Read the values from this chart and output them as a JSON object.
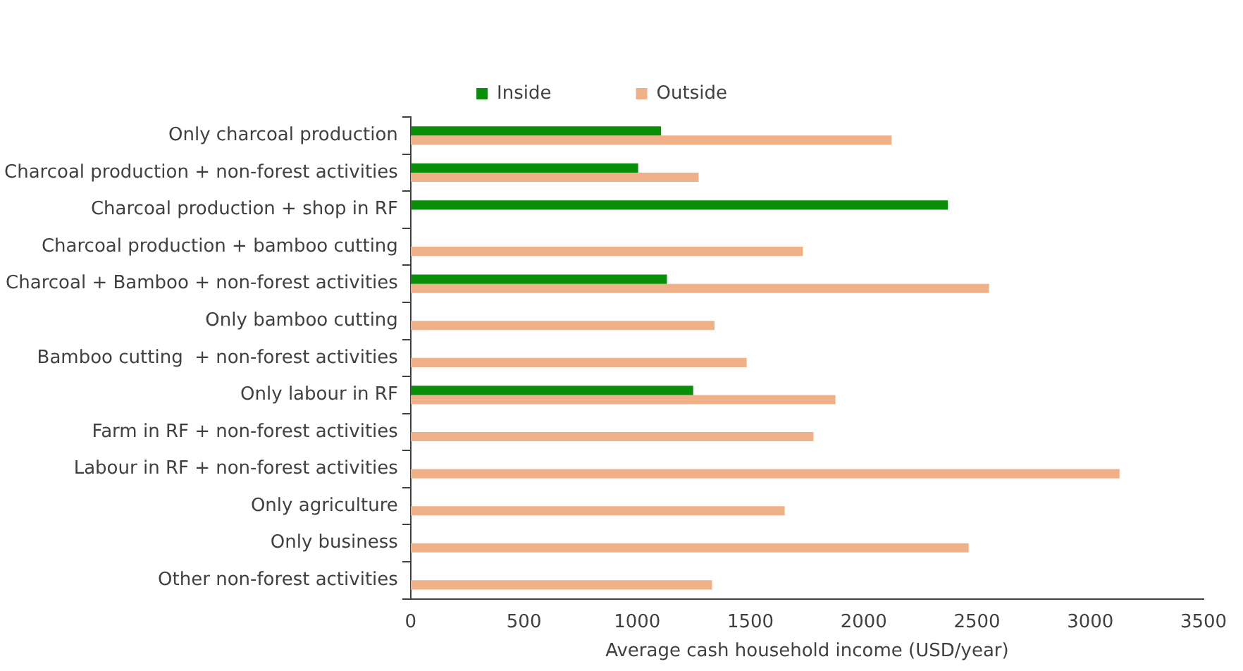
{
  "chart_data": {
    "type": "bar",
    "orientation": "horizontal",
    "xlabel": "Average cash household income (USD/year)",
    "categories": [
      "Only charcoal production",
      "Charcoal production + non-forest activities",
      "Charcoal production + shop in RF",
      "Charcoal production + bamboo cutting",
      "Charcoal + Bamboo + non-forest activities",
      "Only bamboo cutting",
      "Bamboo cutting  + non-forest activities",
      "Only labour in RF",
      "Farm in RF + non-forest activities",
      "Labour in RF + non-forest activities",
      "Only agriculture",
      "Only business",
      "Other non-forest activities"
    ],
    "series": [
      {
        "name": "Inside",
        "color": "#0a8f0a",
        "values": [
          1105,
          1004,
          2371,
          null,
          1131,
          null,
          null,
          1247,
          null,
          null,
          null,
          null,
          null
        ]
      },
      {
        "name": "Outside",
        "color": "#f0b088",
        "values": [
          2123,
          1271,
          null,
          1731,
          2553,
          1341,
          1483,
          1875,
          1778,
          3129,
          1651,
          2463,
          1330
        ]
      }
    ],
    "xlim": [
      0,
      3500
    ],
    "xticks": [
      0,
      500,
      1000,
      1500,
      2000,
      2500,
      3000,
      3500
    ],
    "grid": false,
    "legend": "top"
  }
}
